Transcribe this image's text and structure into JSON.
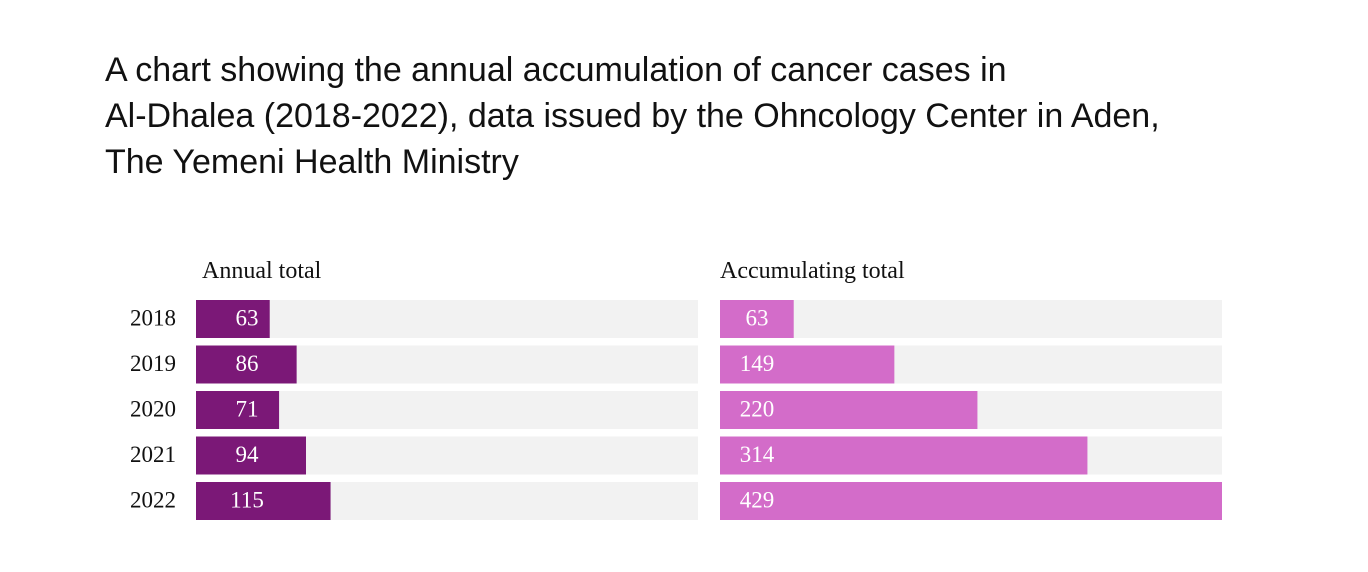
{
  "title_lines": [
    "A chart showing the annual accumulation of cancer cases in",
    "Al-Dhalea (2018-2022), data issued  by  the Ohncology Center in Aden,",
    "The Yemeni Health Ministry"
  ],
  "chart_data": {
    "type": "bar",
    "orientation": "horizontal",
    "categories": [
      "2018",
      "2019",
      "2020",
      "2021",
      "2022"
    ],
    "series": [
      {
        "name": "Annual total",
        "color": "#7b1877",
        "values": [
          63,
          86,
          71,
          94,
          115
        ]
      },
      {
        "name": "Accumulating total",
        "color": "#d36cc9",
        "values": [
          63,
          149,
          220,
          314,
          429
        ]
      }
    ],
    "xlim": [
      0,
      429
    ]
  }
}
